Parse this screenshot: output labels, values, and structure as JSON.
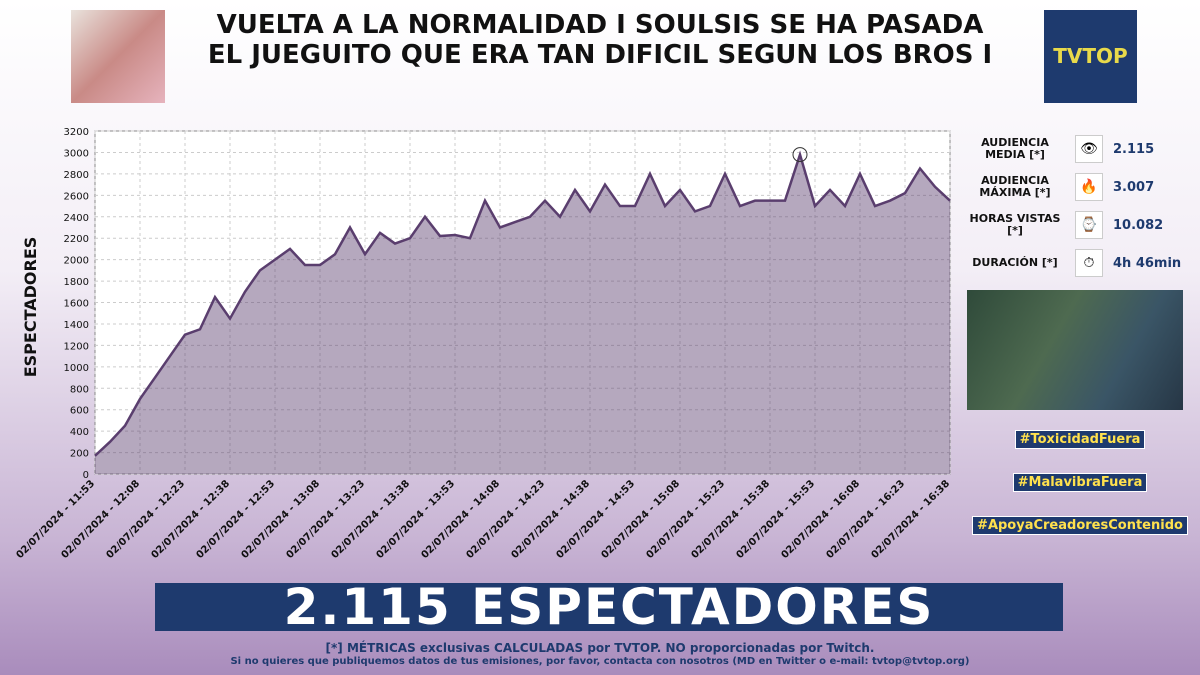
{
  "chart_data": {
    "type": "area-line",
    "title": "VUELTA A LA NORMALIDAD I SOULSIS SE HA PASADA EL JUEGUITO QUE ERA TAN DIFICIL SEGUN LOS BROS I",
    "y_label": "ESPECTADORES",
    "categories": [
      "02/07/2024 - 11:53",
      null,
      null,
      "02/07/2024 - 12:08",
      null,
      null,
      "02/07/2024 - 12:23",
      null,
      null,
      "02/07/2024 - 12:38",
      null,
      null,
      "02/07/2024 - 12:53",
      null,
      null,
      "02/07/2024 - 13:08",
      null,
      null,
      "02/07/2024 - 13:23",
      null,
      null,
      "02/07/2024 - 13:38",
      null,
      null,
      "02/07/2024 - 13:53",
      null,
      null,
      "02/07/2024 - 14:08",
      null,
      null,
      "02/07/2024 - 14:23",
      null,
      null,
      "02/07/2024 - 14:38",
      null,
      null,
      "02/07/2024 - 14:53",
      null,
      null,
      "02/07/2024 - 15:08",
      null,
      null,
      "02/07/2024 - 15:23",
      null,
      null,
      "02/07/2024 - 15:38",
      null,
      null,
      "02/07/2024 - 15:53",
      null,
      null,
      "02/07/2024 - 16:08",
      null,
      null,
      "02/07/2024 - 16:23",
      null,
      null,
      "02/07/2024 - 16:38"
    ],
    "values": [
      170,
      300,
      450,
      700,
      900,
      1100,
      1300,
      1350,
      1650,
      1450,
      1700,
      1900,
      2000,
      2100,
      1950,
      1950,
      2050,
      2300,
      2050,
      2250,
      2150,
      2200,
      2400,
      2220,
      2230,
      2200,
      2550,
      2300,
      2350,
      2400,
      2550,
      2400,
      2650,
      2450,
      2700,
      2500,
      2500,
      2800,
      2500,
      2650,
      2450,
      2500,
      2800,
      2500,
      2550,
      2550,
      2550,
      2980,
      2500,
      2650,
      2500,
      2800,
      2500,
      2550,
      2620,
      2850,
      2680,
      2550
    ],
    "color": "#5a3e6e",
    "ylim": [
      0,
      3200
    ],
    "yticks": [
      0,
      200,
      400,
      600,
      800,
      1000,
      1200,
      1400,
      1600,
      1800,
      2000,
      2200,
      2400,
      2600,
      2800,
      3000,
      3200
    ],
    "grid": true
  },
  "logo": "TVTOP",
  "stats": [
    {
      "label": "AUDIENCIA MEDIA [*]",
      "value": "2.115"
    },
    {
      "label": "AUDIENCIA MÁXIMA [*]",
      "value": "3.007"
    },
    {
      "label": "HORAS VISTAS [*]",
      "value": "10.082"
    },
    {
      "label": "DURACIÓN [*]",
      "value": "4h 46min"
    }
  ],
  "hashtags": [
    "#ToxicidadFuera",
    "#MalavibraFuera",
    "#ApoyaCreadoresContenido"
  ],
  "banner": "2.115 ESPECTADORES",
  "footer": [
    "[*] MÉTRICAS exclusivas CALCULADAS por TVTOP. NO proporcionadas por Twitch.",
    "Si no quieres que publiquemos datos de tus emisiones, por favor, contacta con nosotros (MD en Twitter o e-mail: tvtop@tvtop.org)"
  ]
}
